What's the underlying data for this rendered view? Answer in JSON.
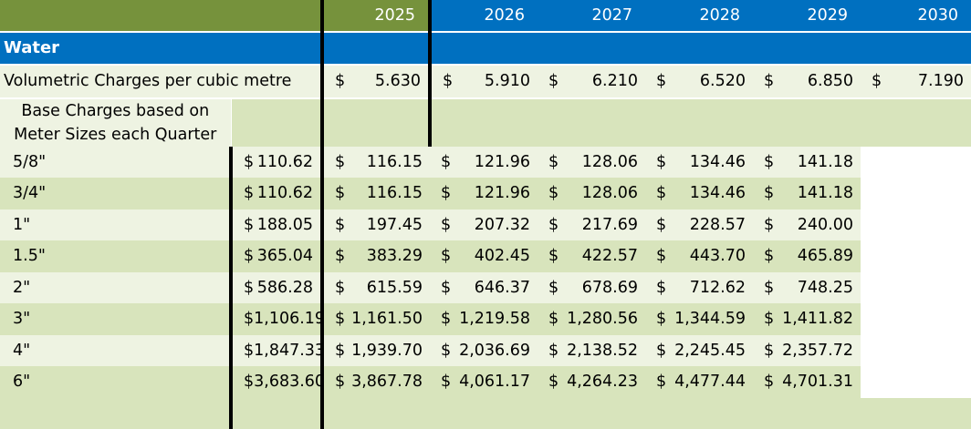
{
  "header": {
    "years": [
      "2025",
      "2026",
      "2027",
      "2028",
      "2029",
      "2030"
    ]
  },
  "section": {
    "title": "Water"
  },
  "volumetric": {
    "label": "Volumetric Charges per cubic metre",
    "currency": "$",
    "values": [
      "5.630",
      "5.910",
      "6.210",
      "6.520",
      "6.850",
      "7.190"
    ]
  },
  "base": {
    "label": "Base Charges based on Meter Sizes each Quarter",
    "currency": "$",
    "rows": [
      {
        "size": "5/8\"",
        "values": [
          "110.62",
          "116.15",
          "121.96",
          "128.06",
          "134.46",
          "141.18"
        ]
      },
      {
        "size": "3/4\"",
        "values": [
          "110.62",
          "116.15",
          "121.96",
          "128.06",
          "134.46",
          "141.18"
        ]
      },
      {
        "size": "1\"",
        "values": [
          "188.05",
          "197.45",
          "207.32",
          "217.69",
          "228.57",
          "240.00"
        ]
      },
      {
        "size": "1.5\"",
        "values": [
          "365.04",
          "383.29",
          "402.45",
          "422.57",
          "443.70",
          "465.89"
        ]
      },
      {
        "size": "2\"",
        "values": [
          "586.28",
          "615.59",
          "646.37",
          "678.69",
          "712.62",
          "748.25"
        ]
      },
      {
        "size": "3\"",
        "values": [
          "1,106.19",
          "1,161.50",
          "1,219.58",
          "1,280.56",
          "1,344.59",
          "1,411.82"
        ]
      },
      {
        "size": "4\"",
        "values": [
          "1,847.33",
          "1,939.70",
          "2,036.69",
          "2,138.52",
          "2,245.45",
          "2,357.72"
        ]
      },
      {
        "size": "6\"",
        "values": [
          "3,683.60",
          "3,867.78",
          "4,061.17",
          "4,264.23",
          "4,477.44",
          "4,701.31"
        ]
      }
    ]
  }
}
